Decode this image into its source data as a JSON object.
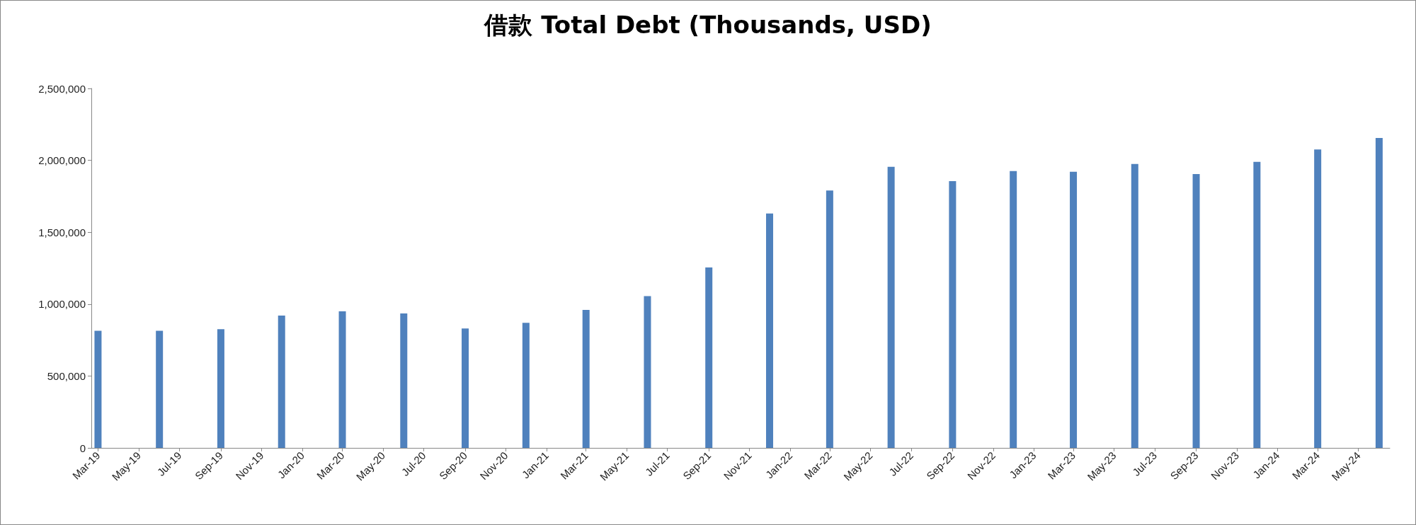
{
  "chart_data": {
    "type": "bar",
    "title": "借款 Total Debt (Thousands, USD)",
    "x": [
      "2019-03",
      "2019-06",
      "2019-09",
      "2019-12",
      "2020-03",
      "2020-06",
      "2020-09",
      "2020-12",
      "2021-03",
      "2021-06",
      "2021-09",
      "2021-12",
      "2022-03",
      "2022-06",
      "2022-09",
      "2022-12",
      "2023-03",
      "2023-06",
      "2023-09",
      "2023-12",
      "2024-03",
      "2024-06"
    ],
    "values": [
      815000,
      815000,
      825000,
      920000,
      950000,
      935000,
      830000,
      870000,
      960000,
      1055000,
      1255000,
      1630000,
      1790000,
      1955000,
      1855000,
      1925000,
      1920000,
      1975000,
      1905000,
      1990000,
      2075000,
      2155000
    ],
    "color": "#4f81bd",
    "xlim": [
      "2019-02-19",
      "2024-06-17"
    ],
    "xticks": [
      {
        "value": "2019-03",
        "label": "Mar-19"
      },
      {
        "value": "2019-05",
        "label": "May-19"
      },
      {
        "value": "2019-07",
        "label": "Jul-19"
      },
      {
        "value": "2019-09",
        "label": "Sep-19"
      },
      {
        "value": "2019-11",
        "label": "Nov-19"
      },
      {
        "value": "2020-01",
        "label": "Jan-20"
      },
      {
        "value": "2020-03",
        "label": "Mar-20"
      },
      {
        "value": "2020-05",
        "label": "May-20"
      },
      {
        "value": "2020-07",
        "label": "Jul-20"
      },
      {
        "value": "2020-09",
        "label": "Sep-20"
      },
      {
        "value": "2020-11",
        "label": "Nov-20"
      },
      {
        "value": "2021-01",
        "label": "Jan-21"
      },
      {
        "value": "2021-03",
        "label": "Mar-21"
      },
      {
        "value": "2021-05",
        "label": "May-21"
      },
      {
        "value": "2021-07",
        "label": "Jul-21"
      },
      {
        "value": "2021-09",
        "label": "Sep-21"
      },
      {
        "value": "2021-11",
        "label": "Nov-21"
      },
      {
        "value": "2022-01",
        "label": "Jan-22"
      },
      {
        "value": "2022-03",
        "label": "Mar-22"
      },
      {
        "value": "2022-05",
        "label": "May-22"
      },
      {
        "value": "2022-07",
        "label": "Jul-22"
      },
      {
        "value": "2022-09",
        "label": "Sep-22"
      },
      {
        "value": "2022-11",
        "label": "Nov-22"
      },
      {
        "value": "2023-01",
        "label": "Jan-23"
      },
      {
        "value": "2023-03",
        "label": "Mar-23"
      },
      {
        "value": "2023-05",
        "label": "May-23"
      },
      {
        "value": "2023-07",
        "label": "Jul-23"
      },
      {
        "value": "2023-09",
        "label": "Sep-23"
      },
      {
        "value": "2023-11",
        "label": "Nov-23"
      },
      {
        "value": "2024-01",
        "label": "Jan-24"
      },
      {
        "value": "2024-03",
        "label": "Mar-24"
      },
      {
        "value": "2024-05",
        "label": "May-24"
      }
    ],
    "ylim": [
      0,
      2500000
    ],
    "yticks": [
      0,
      {
        "value": 500000,
        "label": "500,000"
      },
      {
        "value": 1000000,
        "label": "1,000,000"
      },
      {
        "value": 1500000,
        "label": "1,500,000"
      },
      {
        "value": 2000000,
        "label": "2,000,000"
      },
      {
        "value": 2500000,
        "label": "2,500,000"
      }
    ],
    "grid": false
  }
}
